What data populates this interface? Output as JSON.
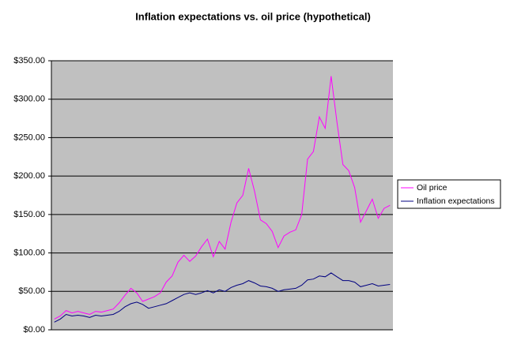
{
  "chart_data": {
    "type": "line",
    "title": "Inflation expectations vs. oil price (hypothetical)",
    "series": [
      {
        "name": "Oil price",
        "color": "#ff00ff",
        "values": [
          14,
          18,
          25,
          22,
          24,
          22,
          20,
          24,
          23,
          25,
          27,
          35,
          45,
          54,
          48,
          37,
          40,
          43,
          48,
          62,
          70,
          88,
          97,
          89,
          96,
          108,
          118,
          95,
          115,
          105,
          140,
          165,
          175,
          210,
          180,
          143,
          138,
          128,
          107,
          122,
          127,
          130,
          150,
          222,
          232,
          277,
          262,
          330,
          270,
          215,
          207,
          185,
          140,
          155,
          170,
          145,
          158,
          162
        ]
      },
      {
        "name": "Inflation expectations",
        "color": "#000080",
        "values": [
          10,
          14,
          20,
          18,
          19,
          18,
          16,
          19,
          18,
          19,
          20,
          24,
          30,
          34,
          36,
          33,
          28,
          30,
          32,
          34,
          38,
          42,
          46,
          48,
          46,
          48,
          51,
          48,
          52,
          50,
          55,
          58,
          60,
          64,
          61,
          57,
          56,
          54,
          50,
          52,
          53,
          54,
          58,
          65,
          66,
          70,
          69,
          74,
          69,
          64,
          64,
          62,
          56,
          58,
          60,
          57,
          58,
          59
        ]
      }
    ],
    "ylim": [
      0,
      350
    ],
    "yticks": [
      {
        "value": 0,
        "label": "$0.00"
      },
      {
        "value": 50,
        "label": "$50.00"
      },
      {
        "value": 100,
        "label": "$100.00"
      },
      {
        "value": 150,
        "label": "$150.00"
      },
      {
        "value": 200,
        "label": "$200.00"
      },
      {
        "value": 250,
        "label": "$250.00"
      },
      {
        "value": 300,
        "label": "$300.00"
      },
      {
        "value": 350,
        "label": "$350.00"
      }
    ],
    "grid": true,
    "plot_background": "#c0c0c0",
    "legend": "right"
  }
}
